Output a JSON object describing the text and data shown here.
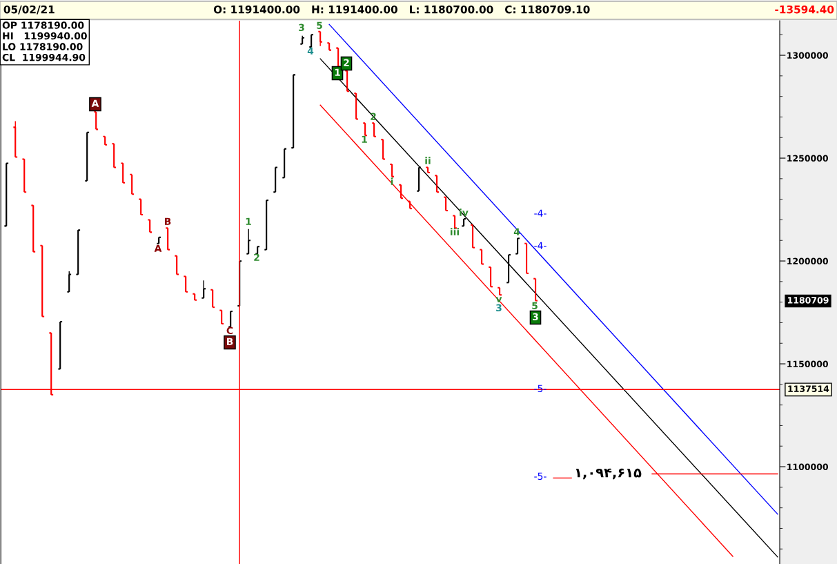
{
  "chart_data": {
    "type": "candlestick",
    "title": "05/02/21",
    "subtitle": "O: 1191400.00   H: 1191400.00   L: 1180700.00   C: 1180709.10",
    "categories": [
      null,
      null,
      null,
      null,
      null,
      null,
      null,
      null,
      null,
      null,
      null,
      null,
      null,
      null,
      null,
      null,
      null,
      null,
      null,
      null,
      null,
      null,
      null,
      null,
      null,
      null,
      null,
      null,
      null,
      null,
      null,
      null,
      null,
      null,
      null,
      null,
      null,
      null,
      null,
      null,
      null,
      null,
      null,
      null,
      null,
      null,
      null,
      null,
      null,
      null,
      null,
      null,
      null,
      null,
      null,
      null,
      null,
      null,
      null,
      null,
      null,
      null,
      null,
      null,
      null,
      null,
      null,
      null,
      null,
      null,
      null,
      null,
      null,
      null,
      null,
      null,
      null,
      null,
      null,
      null,
      null,
      null,
      null,
      null,
      null,
      null,
      null
    ],
    "ohlc": [
      [
        1217000,
        1247500,
        1217000,
        1247500
      ],
      [
        1265000,
        1268000,
        1250500,
        1250500
      ],
      [
        1249500,
        1249500,
        1233500,
        1233500
      ],
      [
        1227000,
        1227000,
        1204500,
        1204500
      ],
      [
        1207500,
        1207500,
        1173000,
        1173000
      ],
      [
        1165000,
        1165000,
        1135000,
        1135000
      ],
      [
        1147500,
        1170500,
        1147500,
        1170500
      ],
      [
        1185000,
        1195000,
        1185000,
        1193500
      ],
      [
        1193500,
        1215000,
        1193500,
        1215000
      ],
      [
        1239000,
        1262500,
        1239000,
        1262500
      ],
      [
        1272500,
        1272500,
        1264000,
        1264000
      ],
      [
        1260500,
        1260500,
        1256500,
        1256500
      ],
      [
        1257000,
        1257000,
        1245500,
        1245500
      ],
      [
        1247500,
        1247500,
        1238000,
        1238000
      ],
      [
        1242000,
        1242000,
        1232500,
        1232500
      ],
      [
        1230000,
        1230000,
        1222500,
        1222500
      ],
      [
        1220000,
        1220000,
        1214000,
        1214000
      ],
      [
        1208500,
        1211500,
        1208500,
        1211500
      ],
      [
        1216000,
        1216000,
        1205500,
        1205500
      ],
      [
        1202500,
        1202500,
        1193500,
        1193500
      ],
      [
        1192500,
        1192500,
        1185000,
        1185000
      ],
      [
        1184000,
        1184000,
        1181000,
        1181000
      ],
      [
        1182000,
        1190500,
        1182000,
        1186500
      ],
      [
        1186000,
        1186000,
        1177500,
        1177500
      ],
      [
        1176000,
        1176000,
        1169500,
        1169500
      ],
      [
        1168000,
        1175500,
        1168000,
        1175500
      ],
      [
        1178190,
        1199944.9,
        1178190,
        1199944.9
      ],
      [
        1203500,
        1215500,
        1203500,
        1210000
      ],
      [
        1203500,
        1207000,
        1203500,
        1207000
      ],
      [
        1205500,
        1229500,
        1205500,
        1229500
      ],
      [
        1233500,
        1245500,
        1233500,
        1245500
      ],
      [
        1240500,
        1254500,
        1240500,
        1254500
      ],
      [
        1255000,
        1290500,
        1255000,
        1290500
      ],
      [
        1305500,
        1309500,
        1305500,
        1308500
      ],
      [
        1304000,
        1310000,
        1304000,
        1310000
      ],
      [
        1311500,
        1311500,
        1304500,
        1306500
      ],
      [
        1306000,
        1306000,
        1302500,
        1302500
      ],
      [
        1303500,
        1303500,
        1294500,
        1294500
      ],
      [
        1292500,
        1292500,
        1282500,
        1282500
      ],
      [
        1281500,
        1281500,
        1269000,
        1269000
      ],
      [
        1267000,
        1267000,
        1261000,
        1261000
      ],
      [
        1267000,
        1267000,
        1260500,
        1260500
      ],
      [
        1259000,
        1259000,
        1249500,
        1249500
      ],
      [
        1247000,
        1247000,
        1241000,
        1241000
      ],
      [
        1237000,
        1237000,
        1230500,
        1230500
      ],
      [
        1229000,
        1229000,
        1225500,
        1225500
      ],
      [
        1234000,
        1245500,
        1234000,
        1245500
      ],
      [
        1245500,
        1245500,
        1243000,
        1243000
      ],
      [
        1241500,
        1241500,
        1233500,
        1233500
      ],
      [
        1231000,
        1231000,
        1224500,
        1224500
      ],
      [
        1222000,
        1222000,
        1216000,
        1216000
      ],
      [
        1217000,
        1220500,
        1217000,
        1220500
      ],
      [
        1217500,
        1217500,
        1206500,
        1206500
      ],
      [
        1205500,
        1205500,
        1198500,
        1198500
      ],
      [
        1197000,
        1197000,
        1187500,
        1187500
      ],
      [
        1187000,
        1187000,
        1183500,
        1183500
      ],
      [
        1189500,
        1203000,
        1189500,
        1203000
      ],
      [
        1203500,
        1211000,
        1203500,
        1211000
      ],
      [
        1208500,
        1208500,
        1194000,
        1194000
      ],
      [
        1191400,
        1191400,
        1180700,
        1180709.1
      ],
      null,
      null,
      null,
      null,
      null,
      null,
      null,
      null,
      null,
      null,
      null,
      null,
      null,
      null,
      null,
      null,
      null,
      null,
      null,
      null,
      null,
      null,
      null,
      null,
      null,
      null,
      null
    ],
    "colors": [
      "#000000",
      "#ff0000",
      "#ff0000",
      "#ff0000",
      "#ff0000",
      "#ff0000",
      "#000000",
      "#000000",
      "#000000",
      "#000000",
      "#ff0000",
      "#ff0000",
      "#ff0000",
      "#ff0000",
      "#ff0000",
      "#ff0000",
      "#ff0000",
      "#000000",
      "#ff0000",
      "#ff0000",
      "#ff0000",
      "#ff0000",
      "#000000",
      "#ff0000",
      "#ff0000",
      "#000000",
      "#000000",
      "#000000",
      "#000000",
      "#000000",
      "#000000",
      "#000000",
      "#000000",
      "#000000",
      "#000000",
      "#ff0000",
      "#ff0000",
      "#ff0000",
      "#ff0000",
      "#ff0000",
      "#ff0000",
      "#ff0000",
      "#ff0000",
      "#ff0000",
      "#ff0000",
      "#ff0000",
      "#000000",
      "#ff0000",
      "#ff0000",
      "#ff0000",
      "#ff0000",
      "#000000",
      "#ff0000",
      "#ff0000",
      "#ff0000",
      "#ff0000",
      "#000000",
      "#000000",
      "#ff0000",
      "#ff0000",
      null,
      null,
      null,
      null,
      null,
      null,
      null,
      null,
      null,
      null,
      null,
      null,
      null,
      null,
      null,
      null,
      null,
      null,
      null,
      null,
      null,
      null,
      null,
      null,
      null,
      null,
      null
    ],
    "series": [
      {
        "type": "line",
        "color": "#0000ff",
        "values": [
          null,
          null,
          null,
          null,
          null,
          null,
          null,
          null,
          null,
          null,
          null,
          null,
          null,
          null,
          null,
          null,
          null,
          null,
          null,
          null,
          null,
          null,
          null,
          null,
          null,
          null,
          null,
          null,
          null,
          null,
          null,
          null,
          null,
          null,
          null,
          null,
          1315000,
          null,
          null,
          null,
          null,
          null,
          null,
          null,
          null,
          null,
          null,
          null,
          null,
          null,
          null,
          null,
          null,
          null,
          null,
          null,
          null,
          null,
          null,
          null,
          null,
          null,
          null,
          null,
          null,
          null,
          null,
          null,
          null,
          null,
          null,
          null,
          null,
          null,
          null,
          null,
          null,
          null,
          null,
          null,
          null,
          null,
          null,
          null,
          null,
          null,
          1076900
        ]
      },
      {
        "type": "line",
        "color": "#000000",
        "values": [
          null,
          null,
          null,
          null,
          null,
          null,
          null,
          null,
          null,
          null,
          null,
          null,
          null,
          null,
          null,
          null,
          null,
          null,
          null,
          null,
          null,
          null,
          null,
          null,
          null,
          null,
          null,
          null,
          null,
          null,
          null,
          null,
          null,
          null,
          null,
          1298300,
          null,
          null,
          null,
          null,
          null,
          null,
          null,
          null,
          null,
          null,
          null,
          null,
          null,
          null,
          null,
          null,
          null,
          null,
          null,
          null,
          null,
          null,
          null,
          null,
          null,
          null,
          null,
          null,
          null,
          null,
          null,
          null,
          null,
          null,
          null,
          null,
          null,
          null,
          null,
          null,
          null,
          null,
          null,
          null,
          null,
          null,
          null,
          null,
          null,
          null,
          1056100
        ]
      },
      {
        "type": "line",
        "color": "#ff0000",
        "values": [
          null,
          null,
          null,
          null,
          null,
          null,
          null,
          null,
          null,
          null,
          null,
          null,
          null,
          null,
          null,
          null,
          null,
          null,
          null,
          null,
          null,
          null,
          null,
          null,
          null,
          null,
          null,
          null,
          null,
          null,
          null,
          null,
          null,
          null,
          null,
          1275800,
          null,
          null,
          null,
          null,
          null,
          null,
          null,
          null,
          null,
          null,
          null,
          null,
          null,
          null,
          null,
          null,
          null,
          null,
          null,
          null,
          null,
          null,
          null,
          null,
          null,
          null,
          null,
          null,
          null,
          null,
          null,
          null,
          null,
          null,
          null,
          null,
          null,
          null,
          null,
          null,
          null,
          null,
          null,
          null,
          null,
          1056400,
          null,
          null,
          null,
          null,
          null
        ]
      },
      {
        "type": "line",
        "color": "#ff0000",
        "values": [
          null,
          null,
          null,
          null,
          null,
          null,
          null,
          null,
          null,
          null,
          null,
          null,
          null,
          null,
          null,
          null,
          null,
          null,
          null,
          null,
          null,
          null,
          null,
          null,
          null,
          null,
          null,
          null,
          null,
          null,
          null,
          null,
          null,
          null,
          null,
          null,
          null,
          null,
          null,
          null,
          null,
          null,
          null,
          null,
          null,
          null,
          null,
          null,
          null,
          null,
          null,
          null,
          null,
          null,
          null,
          null,
          null,
          null,
          null,
          null,
          null,
          null,
          null,
          null,
          null,
          null,
          null,
          null,
          null,
          null,
          null,
          null,
          1096500,
          null,
          null,
          null,
          null,
          null,
          null,
          null,
          null,
          null,
          null,
          null,
          null,
          null,
          1096500
        ]
      },
      {
        "type": "line",
        "color": "#ff0000",
        "values": [
          null,
          null,
          null,
          null,
          null,
          null,
          null,
          null,
          null,
          null,
          null,
          null,
          null,
          null,
          null,
          null,
          null,
          null,
          null,
          null,
          null,
          null,
          null,
          null,
          null,
          null,
          null,
          null,
          null,
          null,
          null,
          null,
          null,
          null,
          null,
          null,
          null,
          null,
          null,
          null,
          null,
          null,
          null,
          null,
          null,
          null,
          null,
          null,
          null,
          null,
          null,
          null,
          null,
          null,
          null,
          null,
          null,
          null,
          null,
          null,
          null,
          1094500,
          null,
          1094500,
          null,
          null,
          null,
          null,
          null,
          null,
          null,
          null,
          null,
          null,
          null,
          null,
          null,
          null,
          null,
          null,
          null,
          null,
          null,
          null,
          null,
          null,
          null
        ]
      }
    ],
    "ref_lines": [
      {
        "axis": "y",
        "value": 1137514,
        "label": "1137514",
        "color": "#ff0000"
      }
    ],
    "annotations": [
      "-13594.40",
      "OP 1178190.00\nHI   1199940.00\nLO 1178190.00\nCL  1199944.90",
      "1180709",
      "۱,۰۹۴,۶۱۵",
      "A",
      "B",
      "A",
      "C",
      "B",
      "1",
      "2",
      "3",
      "4",
      "5",
      "1",
      "2",
      "1",
      "2",
      "i",
      "ii",
      "iii",
      "iv",
      "v",
      "3",
      "4",
      "5",
      "3",
      "-4-",
      "-4-",
      "-5-",
      "-5-"
    ],
    "ylim": [
      1052700,
      1316800
    ],
    "yticks": [
      1100000,
      1150000,
      1200000,
      1250000,
      1300000
    ],
    "tick_labels": "y",
    "grid": false
  }
}
